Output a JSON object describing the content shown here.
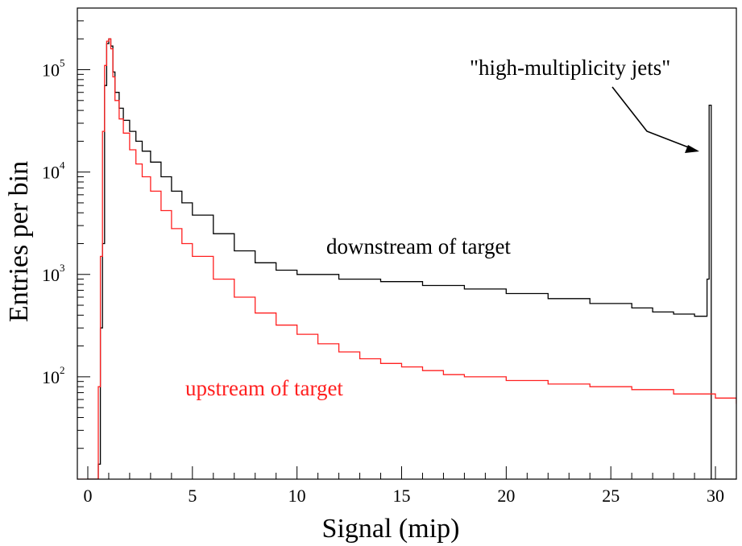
{
  "chart_data": {
    "type": "line",
    "xlabel": "Signal (mip)",
    "ylabel": "Entries per bin",
    "xlim": [
      -0.5,
      31.0
    ],
    "ylim": [
      10,
      400000
    ],
    "yscale": "log",
    "grid": false,
    "x_ticks": [
      "0",
      "5",
      "10",
      "15",
      "20",
      "25",
      "30"
    ],
    "y_ticks": [
      {
        "base": "10",
        "exp": "2"
      },
      {
        "base": "10",
        "exp": "3"
      },
      {
        "base": "10",
        "exp": "4"
      },
      {
        "base": "10",
        "exp": "5"
      }
    ],
    "series": [
      {
        "name": "downstream of target",
        "color": "#000000",
        "style": "step",
        "x": [
          0.0,
          0.3,
          0.5,
          0.6,
          0.7,
          0.8,
          0.9,
          1.0,
          1.1,
          1.2,
          1.3,
          1.5,
          1.7,
          2.0,
          2.3,
          2.6,
          3.0,
          3.5,
          4.0,
          4.5,
          5.0,
          6.0,
          7.0,
          8.0,
          9.0,
          10.0,
          12.0,
          14.0,
          16.0,
          18.0,
          20.0,
          22.0,
          24.0,
          26.0,
          27.0,
          28.0,
          29.0,
          29.6,
          29.7,
          29.8,
          29.9,
          30.0
        ],
        "y": [
          10,
          10,
          14,
          300,
          2000,
          70000,
          180000,
          200000,
          170000,
          95000,
          60000,
          42000,
          32000,
          25000,
          20000,
          16000,
          12500,
          9000,
          6500,
          5000,
          3800,
          2500,
          1700,
          1300,
          1100,
          1000,
          900,
          850,
          780,
          720,
          650,
          580,
          520,
          470,
          430,
          410,
          390,
          900,
          45000,
          10,
          10,
          10
        ]
      },
      {
        "name": "upstream of target",
        "color": "#ff2020",
        "style": "step",
        "x": [
          -0.5,
          0.4,
          0.5,
          0.6,
          0.7,
          0.8,
          0.9,
          1.0,
          1.1,
          1.2,
          1.3,
          1.5,
          1.7,
          2.0,
          2.3,
          2.6,
          3.0,
          3.5,
          4.0,
          4.5,
          5.0,
          6.0,
          7.0,
          8.0,
          9.0,
          10.0,
          11.0,
          12.0,
          13.0,
          14.0,
          15.0,
          16.0,
          17.0,
          18.0,
          20.0,
          22.0,
          24.0,
          26.0,
          28.0,
          30.0,
          31.0
        ],
        "y": [
          10,
          10,
          80,
          1500,
          25000,
          110000,
          190000,
          200000,
          160000,
          85000,
          50000,
          33000,
          24000,
          16500,
          12000,
          9000,
          6500,
          4200,
          2800,
          2000,
          1500,
          900,
          600,
          420,
          320,
          260,
          210,
          175,
          150,
          135,
          125,
          115,
          105,
          100,
          92,
          85,
          80,
          75,
          68,
          62,
          55
        ]
      }
    ],
    "annotations": [
      {
        "text": "downstream of target",
        "color": "#000000"
      },
      {
        "text": "upstream of target",
        "color": "#ff2020"
      },
      {
        "text": "\"high-multiplicity jets\"",
        "color": "#000000"
      }
    ]
  }
}
